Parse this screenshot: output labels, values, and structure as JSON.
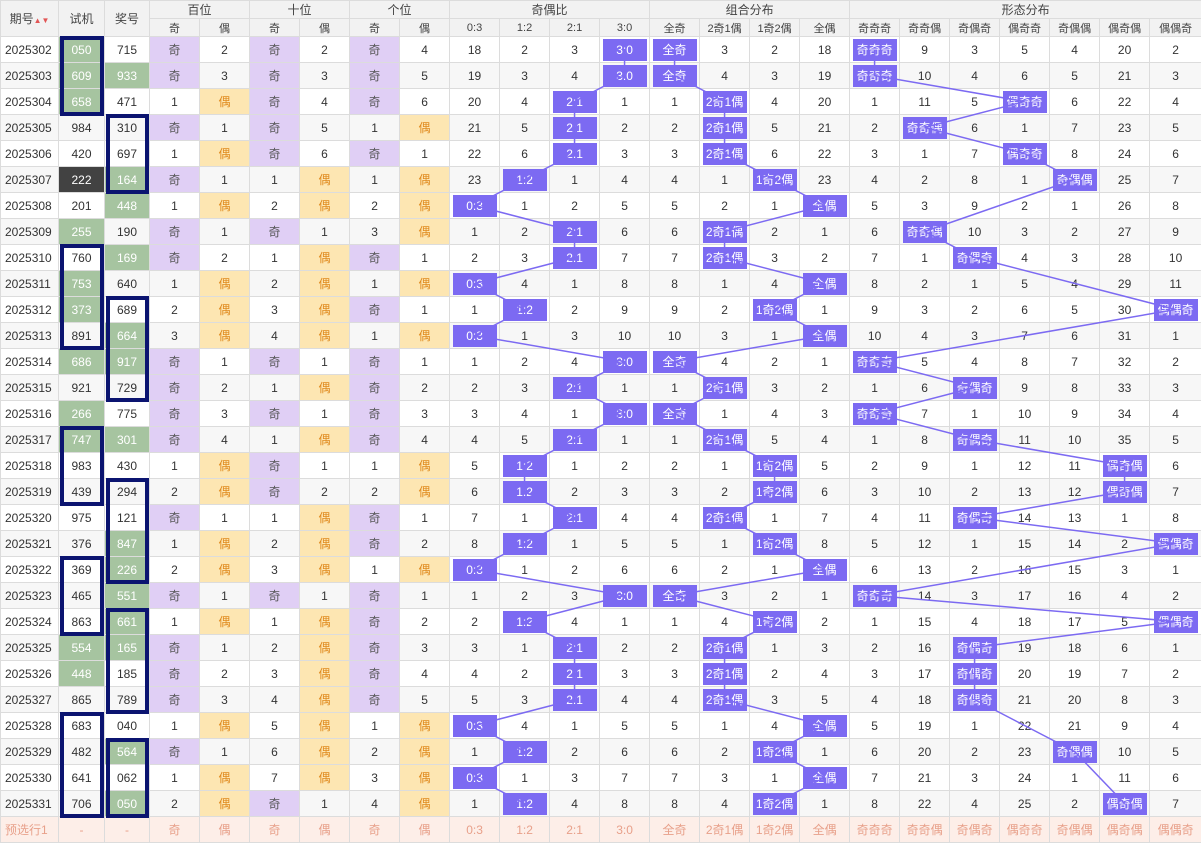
{
  "header": {
    "issue": "期号",
    "sort_icon": "sort-arrows-icon",
    "shiji": "试机",
    "jianghao": "奖号",
    "groups": [
      "百位",
      "十位",
      "个位",
      "奇偶比",
      "组合分布",
      "形态分布"
    ],
    "sub": [
      "奇",
      "偶",
      "奇",
      "偶",
      "奇",
      "偶",
      "0:3",
      "1:2",
      "2:1",
      "3:0",
      "全奇",
      "2奇1偶",
      "1奇2偶",
      "全偶",
      "奇奇奇",
      "奇奇偶",
      "奇偶奇",
      "偶奇奇",
      "奇偶偶",
      "偶奇偶",
      "偶偶奇"
    ]
  },
  "colors": {
    "accent": "#7c6af2",
    "box": "#0b1470",
    "odd_bg": "#e0cff5",
    "even_bg": "#fde6b2",
    "green": "#a6c4a0"
  },
  "rows": [
    {
      "issue": "2025302",
      "shiji": "050",
      "jiang": "715",
      "cells": [
        "奇",
        "2",
        "奇",
        "2",
        "奇",
        "4",
        "18",
        "2",
        "3",
        "3:0",
        "全奇",
        "3",
        "2",
        "18",
        "奇奇奇",
        "9",
        "3",
        "5",
        "4",
        "20",
        "2"
      ]
    },
    {
      "issue": "2025303",
      "shiji": "609",
      "jiang": "933",
      "cells": [
        "奇",
        "3",
        "奇",
        "3",
        "奇",
        "5",
        "19",
        "3",
        "4",
        "3:0",
        "全奇",
        "4",
        "3",
        "19",
        "奇奇奇",
        "10",
        "4",
        "6",
        "5",
        "21",
        "3"
      ]
    },
    {
      "issue": "2025304",
      "shiji": "658",
      "jiang": "471",
      "cells": [
        "1",
        "偶",
        "奇",
        "4",
        "奇",
        "6",
        "20",
        "4",
        "2:1",
        "1",
        "1",
        "2奇1偶",
        "4",
        "20",
        "1",
        "11",
        "5",
        "偶奇奇",
        "6",
        "22",
        "4"
      ]
    },
    {
      "issue": "2025305",
      "shiji": "984",
      "jiang": "310",
      "cells": [
        "奇",
        "1",
        "奇",
        "5",
        "1",
        "偶",
        "21",
        "5",
        "2:1",
        "2",
        "2",
        "2奇1偶",
        "5",
        "21",
        "2",
        "奇奇偶",
        "6",
        "1",
        "7",
        "23",
        "5"
      ]
    },
    {
      "issue": "2025306",
      "shiji": "420",
      "jiang": "697",
      "cells": [
        "1",
        "偶",
        "奇",
        "6",
        "奇",
        "1",
        "22",
        "6",
        "2:1",
        "3",
        "3",
        "2奇1偶",
        "6",
        "22",
        "3",
        "1",
        "7",
        "偶奇奇",
        "8",
        "24",
        "6"
      ]
    },
    {
      "issue": "2025307",
      "shiji": "222",
      "jiang": "164",
      "cells": [
        "奇",
        "1",
        "1",
        "偶",
        "1",
        "偶",
        "23",
        "1:2",
        "1",
        "4",
        "4",
        "1",
        "1奇2偶",
        "23",
        "4",
        "2",
        "8",
        "1",
        "奇偶偶",
        "25",
        "7"
      ]
    },
    {
      "issue": "2025308",
      "shiji": "201",
      "jiang": "448",
      "cells": [
        "1",
        "偶",
        "2",
        "偶",
        "2",
        "偶",
        "0:3",
        "1",
        "2",
        "5",
        "5",
        "2",
        "1",
        "全偶",
        "5",
        "3",
        "9",
        "2",
        "1",
        "26",
        "8"
      ]
    },
    {
      "issue": "2025309",
      "shiji": "255",
      "jiang": "190",
      "cells": [
        "奇",
        "1",
        "奇",
        "1",
        "3",
        "偶",
        "1",
        "2",
        "2:1",
        "6",
        "6",
        "2奇1偶",
        "2",
        "1",
        "6",
        "奇奇偶",
        "10",
        "3",
        "2",
        "27",
        "9"
      ]
    },
    {
      "issue": "2025310",
      "shiji": "760",
      "jiang": "169",
      "cells": [
        "奇",
        "2",
        "1",
        "偶",
        "奇",
        "1",
        "2",
        "3",
        "2:1",
        "7",
        "7",
        "2奇1偶",
        "3",
        "2",
        "7",
        "1",
        "奇偶奇",
        "4",
        "3",
        "28",
        "10"
      ]
    },
    {
      "issue": "2025311",
      "shiji": "753",
      "jiang": "640",
      "cells": [
        "1",
        "偶",
        "2",
        "偶",
        "1",
        "偶",
        "0:3",
        "4",
        "1",
        "8",
        "8",
        "1",
        "4",
        "全偶",
        "8",
        "2",
        "1",
        "5",
        "4",
        "29",
        "11"
      ]
    },
    {
      "issue": "2025312",
      "shiji": "373",
      "jiang": "689",
      "cells": [
        "2",
        "偶",
        "3",
        "偶",
        "奇",
        "1",
        "1",
        "1:2",
        "2",
        "9",
        "9",
        "2",
        "1奇2偶",
        "1",
        "9",
        "3",
        "2",
        "6",
        "5",
        "30",
        "偶偶奇"
      ]
    },
    {
      "issue": "2025313",
      "shiji": "891",
      "jiang": "664",
      "cells": [
        "3",
        "偶",
        "4",
        "偶",
        "1",
        "偶",
        "0:3",
        "1",
        "3",
        "10",
        "10",
        "3",
        "1",
        "全偶",
        "10",
        "4",
        "3",
        "7",
        "6",
        "31",
        "1"
      ]
    },
    {
      "issue": "2025314",
      "shiji": "686",
      "jiang": "917",
      "cells": [
        "奇",
        "1",
        "奇",
        "1",
        "奇",
        "1",
        "1",
        "2",
        "4",
        "3:0",
        "全奇",
        "4",
        "2",
        "1",
        "奇奇奇",
        "5",
        "4",
        "8",
        "7",
        "32",
        "2"
      ]
    },
    {
      "issue": "2025315",
      "shiji": "921",
      "jiang": "729",
      "cells": [
        "奇",
        "2",
        "1",
        "偶",
        "奇",
        "2",
        "2",
        "3",
        "2:1",
        "1",
        "1",
        "2奇1偶",
        "3",
        "2",
        "1",
        "6",
        "奇偶奇",
        "9",
        "8",
        "33",
        "3"
      ]
    },
    {
      "issue": "2025316",
      "shiji": "266",
      "jiang": "775",
      "cells": [
        "奇",
        "3",
        "奇",
        "1",
        "奇",
        "3",
        "3",
        "4",
        "1",
        "3:0",
        "全奇",
        "1",
        "4",
        "3",
        "奇奇奇",
        "7",
        "1",
        "10",
        "9",
        "34",
        "4"
      ]
    },
    {
      "issue": "2025317",
      "shiji": "747",
      "jiang": "301",
      "cells": [
        "奇",
        "4",
        "1",
        "偶",
        "奇",
        "4",
        "4",
        "5",
        "2:1",
        "1",
        "1",
        "2奇1偶",
        "5",
        "4",
        "1",
        "8",
        "奇偶奇",
        "11",
        "10",
        "35",
        "5"
      ]
    },
    {
      "issue": "2025318",
      "shiji": "983",
      "jiang": "430",
      "cells": [
        "1",
        "偶",
        "奇",
        "1",
        "1",
        "偶",
        "5",
        "1:2",
        "1",
        "2",
        "2",
        "1",
        "1奇2偶",
        "5",
        "2",
        "9",
        "1",
        "12",
        "11",
        "偶奇偶",
        "6"
      ]
    },
    {
      "issue": "2025319",
      "shiji": "439",
      "jiang": "294",
      "cells": [
        "2",
        "偶",
        "奇",
        "2",
        "2",
        "偶",
        "6",
        "1:2",
        "2",
        "3",
        "3",
        "2",
        "1奇2偶",
        "6",
        "3",
        "10",
        "2",
        "13",
        "12",
        "偶奇偶",
        "7"
      ]
    },
    {
      "issue": "2025320",
      "shiji": "975",
      "jiang": "121",
      "cells": [
        "奇",
        "1",
        "1",
        "偶",
        "奇",
        "1",
        "7",
        "1",
        "2:1",
        "4",
        "4",
        "2奇1偶",
        "1",
        "7",
        "4",
        "11",
        "奇偶奇",
        "14",
        "13",
        "1",
        "8"
      ]
    },
    {
      "issue": "2025321",
      "shiji": "376",
      "jiang": "847",
      "cells": [
        "1",
        "偶",
        "2",
        "偶",
        "奇",
        "2",
        "8",
        "1:2",
        "1",
        "5",
        "5",
        "1",
        "1奇2偶",
        "8",
        "5",
        "12",
        "1",
        "15",
        "14",
        "2",
        "偶偶奇"
      ]
    },
    {
      "issue": "2025322",
      "shiji": "369",
      "jiang": "226",
      "cells": [
        "2",
        "偶",
        "3",
        "偶",
        "1",
        "偶",
        "0:3",
        "1",
        "2",
        "6",
        "6",
        "2",
        "1",
        "全偶",
        "6",
        "13",
        "2",
        "16",
        "15",
        "3",
        "1"
      ]
    },
    {
      "issue": "2025323",
      "shiji": "465",
      "jiang": "551",
      "cells": [
        "奇",
        "1",
        "奇",
        "1",
        "奇",
        "1",
        "1",
        "2",
        "3",
        "3:0",
        "全奇",
        "3",
        "2",
        "1",
        "奇奇奇",
        "14",
        "3",
        "17",
        "16",
        "4",
        "2"
      ]
    },
    {
      "issue": "2025324",
      "shiji": "863",
      "jiang": "661",
      "cells": [
        "1",
        "偶",
        "1",
        "偶",
        "奇",
        "2",
        "2",
        "1:2",
        "4",
        "1",
        "1",
        "4",
        "1奇2偶",
        "2",
        "1",
        "15",
        "4",
        "18",
        "17",
        "5",
        "偶偶奇"
      ]
    },
    {
      "issue": "2025325",
      "shiji": "554",
      "jiang": "165",
      "cells": [
        "奇",
        "1",
        "2",
        "偶",
        "奇",
        "3",
        "3",
        "1",
        "2:1",
        "2",
        "2",
        "2奇1偶",
        "1",
        "3",
        "2",
        "16",
        "奇偶奇",
        "19",
        "18",
        "6",
        "1"
      ]
    },
    {
      "issue": "2025326",
      "shiji": "448",
      "jiang": "185",
      "cells": [
        "奇",
        "2",
        "3",
        "偶",
        "奇",
        "4",
        "4",
        "2",
        "2:1",
        "3",
        "3",
        "2奇1偶",
        "2",
        "4",
        "3",
        "17",
        "奇偶奇",
        "20",
        "19",
        "7",
        "2"
      ]
    },
    {
      "issue": "2025327",
      "shiji": "865",
      "jiang": "789",
      "cells": [
        "奇",
        "3",
        "4",
        "偶",
        "奇",
        "5",
        "5",
        "3",
        "2:1",
        "4",
        "4",
        "2奇1偶",
        "3",
        "5",
        "4",
        "18",
        "奇偶奇",
        "21",
        "20",
        "8",
        "3"
      ]
    },
    {
      "issue": "2025328",
      "shiji": "683",
      "jiang": "040",
      "cells": [
        "1",
        "偶",
        "5",
        "偶",
        "1",
        "偶",
        "0:3",
        "4",
        "1",
        "5",
        "5",
        "1",
        "4",
        "全偶",
        "5",
        "19",
        "1",
        "22",
        "21",
        "9",
        "4"
      ]
    },
    {
      "issue": "2025329",
      "shiji": "482",
      "jiang": "564",
      "cells": [
        "奇",
        "1",
        "6",
        "偶",
        "2",
        "偶",
        "1",
        "1:2",
        "2",
        "6",
        "6",
        "2",
        "1奇2偶",
        "1",
        "6",
        "20",
        "2",
        "23",
        "奇偶偶",
        "10",
        "5"
      ]
    },
    {
      "issue": "2025330",
      "shiji": "641",
      "jiang": "062",
      "cells": [
        "1",
        "偶",
        "7",
        "偶",
        "3",
        "偶",
        "0:3",
        "1",
        "3",
        "7",
        "7",
        "3",
        "1",
        "全偶",
        "7",
        "21",
        "3",
        "24",
        "1",
        "11",
        "6"
      ]
    },
    {
      "issue": "2025331",
      "shiji": "706",
      "jiang": "050",
      "cells": [
        "2",
        "偶",
        "奇",
        "1",
        "4",
        "偶",
        "1",
        "1:2",
        "4",
        "8",
        "8",
        "4",
        "1奇2偶",
        "1",
        "8",
        "22",
        "4",
        "25",
        "2",
        "偶奇偶",
        "7"
      ]
    }
  ],
  "pred": {
    "issue": "预选行1",
    "shiji": "-",
    "jiang": "-",
    "cells": [
      "奇",
      "偶",
      "奇",
      "偶",
      "奇",
      "偶",
      "0:3",
      "1:2",
      "2:1",
      "3:0",
      "全奇",
      "2奇1偶",
      "1奇2偶",
      "全偶",
      "奇奇奇",
      "奇奇偶",
      "奇偶奇",
      "偶奇奇",
      "奇偶偶",
      "偶奇偶",
      "偶偶奇"
    ]
  }
}
